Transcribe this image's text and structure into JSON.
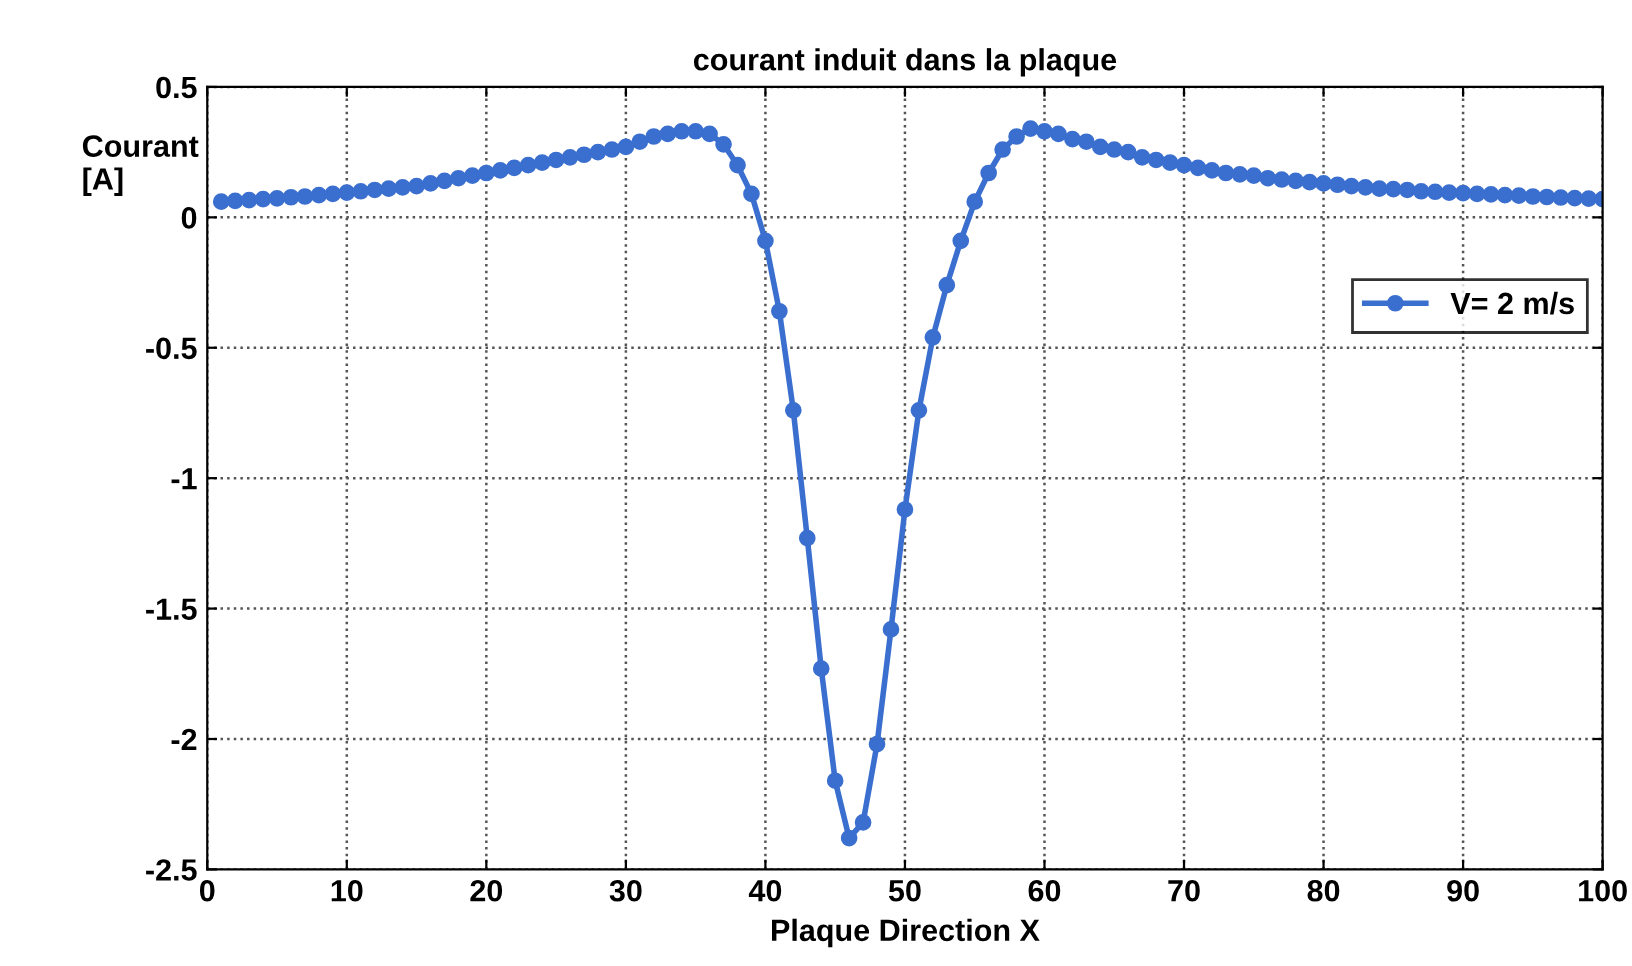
{
  "chart_data": {
    "type": "line",
    "title": "courant induit dans la plaque",
    "xlabel": "Plaque Direction X",
    "ylabel": "Courant\n[A]",
    "x": [
      1,
      2,
      3,
      4,
      5,
      6,
      7,
      8,
      9,
      10,
      11,
      12,
      13,
      14,
      15,
      16,
      17,
      18,
      19,
      20,
      21,
      22,
      23,
      24,
      25,
      26,
      27,
      28,
      29,
      30,
      31,
      32,
      33,
      34,
      35,
      36,
      37,
      38,
      39,
      40,
      41,
      42,
      43,
      44,
      45,
      46,
      47,
      48,
      49,
      50,
      51,
      52,
      53,
      54,
      55,
      56,
      57,
      58,
      59,
      60,
      61,
      62,
      63,
      64,
      65,
      66,
      67,
      68,
      69,
      70,
      71,
      72,
      73,
      74,
      75,
      76,
      77,
      78,
      79,
      80,
      81,
      82,
      83,
      84,
      85,
      86,
      87,
      88,
      89,
      90,
      91,
      92,
      93,
      94,
      95,
      96,
      97,
      98,
      99,
      100
    ],
    "series": [
      {
        "name": "V= 2 m/s",
        "color": "#3a6fcf",
        "values": [
          0.06,
          0.063,
          0.066,
          0.07,
          0.073,
          0.077,
          0.08,
          0.085,
          0.09,
          0.095,
          0.1,
          0.105,
          0.11,
          0.115,
          0.12,
          0.13,
          0.14,
          0.15,
          0.16,
          0.17,
          0.18,
          0.19,
          0.2,
          0.21,
          0.22,
          0.23,
          0.24,
          0.25,
          0.26,
          0.27,
          0.29,
          0.31,
          0.32,
          0.33,
          0.33,
          0.32,
          0.28,
          0.2,
          0.09,
          -0.09,
          -0.36,
          -0.74,
          -1.23,
          -1.73,
          -2.16,
          -2.38,
          -2.32,
          -2.02,
          -1.58,
          -1.12,
          -0.74,
          -0.46,
          -0.26,
          -0.09,
          0.06,
          0.17,
          0.26,
          0.31,
          0.34,
          0.33,
          0.32,
          0.3,
          0.29,
          0.27,
          0.26,
          0.25,
          0.23,
          0.22,
          0.21,
          0.2,
          0.19,
          0.18,
          0.17,
          0.165,
          0.16,
          0.15,
          0.145,
          0.14,
          0.135,
          0.13,
          0.125,
          0.12,
          0.115,
          0.11,
          0.108,
          0.105,
          0.1,
          0.098,
          0.095,
          0.093,
          0.09,
          0.088,
          0.085,
          0.083,
          0.08,
          0.078,
          0.076,
          0.074,
          0.072,
          0.07
        ]
      }
    ],
    "xlim": [
      0,
      100
    ],
    "xticks": [
      0,
      10,
      20,
      30,
      40,
      50,
      60,
      70,
      80,
      90,
      100
    ],
    "ylim": [
      -2.5,
      0.5
    ],
    "yticks": [
      -2.5,
      -2,
      -1.5,
      -1,
      -0.5,
      0,
      0.5
    ],
    "grid": true,
    "legend": "right",
    "marker": "circle",
    "line_style": "solid"
  }
}
